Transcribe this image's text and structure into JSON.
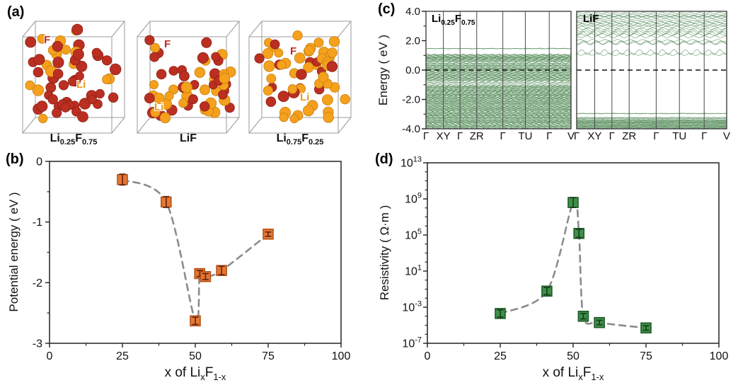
{
  "panel_a": {
    "label": "(a)",
    "f_color": "#bb2f22",
    "f_stroke": "#8d2014",
    "li_color": "#f5a11d",
    "li_stroke": "#c97f0e",
    "structures": [
      {
        "formula": {
          "el1": "Li",
          "sub1": "0.25",
          "el2": "F",
          "sub2": "0.75"
        },
        "f_ratio": 0.75,
        "atoms": 56,
        "f_tag": "F",
        "li_tag": "Li"
      },
      {
        "formula": {
          "el1": "Li",
          "sub1": "",
          "el2": "F",
          "sub2": ""
        },
        "f_ratio": 0.5,
        "atoms": 56,
        "f_tag": "F",
        "li_tag": "Li"
      },
      {
        "formula": {
          "el1": "Li",
          "sub1": "0.75",
          "el2": "F",
          "sub2": "0.25"
        },
        "f_ratio": 0.25,
        "atoms": 56,
        "f_tag": "F",
        "li_tag": "Li"
      }
    ]
  },
  "chart_data": [
    {
      "id": "b",
      "type": "scatter",
      "label": "(b)",
      "ylabel": "Potential energy ( eV )",
      "xlabel": {
        "pre": "x of Li",
        "sub1": "x",
        "mid": "F",
        "sub2": "1-x"
      },
      "xlim": [
        0,
        100
      ],
      "ylim": [
        -3,
        0
      ],
      "xticks": [
        0,
        25,
        50,
        75,
        100
      ],
      "yticks": [
        0,
        -1,
        -2,
        -3
      ],
      "grid": false,
      "points": [
        {
          "x": 25,
          "y": -0.3,
          "yerr": 0.09
        },
        {
          "x": 40,
          "y": -0.67,
          "yerr": 0.09
        },
        {
          "x": 50,
          "y": -2.63,
          "yerr": 0.06
        },
        {
          "x": 51.5,
          "y": -1.85,
          "yerr": 0.05
        },
        {
          "x": 53.5,
          "y": -1.9,
          "yerr": 0.05
        },
        {
          "x": 59,
          "y": -1.8,
          "yerr": 0.07
        },
        {
          "x": 75,
          "y": -1.2,
          "yerr": 0.035
        }
      ],
      "marker": {
        "shape": "square",
        "fill": "#e57733",
        "stroke": "#b4541c",
        "err": "#5f2410"
      },
      "curve": {
        "style": "dashed",
        "color": "#8c8c8c"
      }
    },
    {
      "id": "c",
      "type": "band-structure",
      "label": "(c)",
      "ylabel": "Energy ( eV )",
      "ylim": [
        -4,
        4
      ],
      "ytick_values": [
        4,
        2,
        0,
        -2,
        -4
      ],
      "ytick_labels": [
        "4.0",
        "2.0",
        "0.0",
        "-2.0",
        "-4.0"
      ],
      "yminor": [
        3,
        1,
        -1,
        -3
      ],
      "kpath": [
        "Γ",
        "XY",
        "Γ",
        "ZR",
        "Γ",
        "TU",
        "Γ",
        "V"
      ],
      "kpath_fractions": [
        0,
        0.12,
        0.235,
        0.35,
        0.53,
        0.685,
        0.85,
        1
      ],
      "fermi_energy": 0,
      "band_color": "#3e7d43",
      "panels": [
        {
          "title": {
            "el1": "Li",
            "sub1": "0.25",
            "el2": "F",
            "sub2": "0.75"
          },
          "regions": [
            {
              "from": -4.0,
              "to": -1.02,
              "count": 85,
              "amp": 0.05,
              "waves": 26
            },
            {
              "from": -0.95,
              "to": -0.8,
              "count": 3,
              "amp": 0.03,
              "waves": 20
            },
            {
              "from": -0.75,
              "to": 0.5,
              "count": 34,
              "amp": 0.05,
              "waves": 22
            },
            {
              "from": 0.55,
              "to": 1.08,
              "count": 16,
              "amp": 0.04,
              "waves": 20
            },
            {
              "from": 1.44,
              "to": 1.48,
              "count": 2,
              "amp": 0.01,
              "waves": 12
            }
          ]
        },
        {
          "title": {
            "el1": "LiF",
            "sub1": "",
            "el2": "",
            "sub2": ""
          },
          "regions": [
            {
              "from": -4.0,
              "to": -3.35,
              "count": 22,
              "amp": 0.015,
              "waves": 30
            },
            {
              "from": -3.3,
              "to": -3.22,
              "count": 3,
              "amp": 0.01,
              "waves": 25
            },
            {
              "from": -2.98,
              "to": -2.94,
              "count": 2,
              "amp": 0.008,
              "waves": 12
            },
            {
              "from": 0.95,
              "to": 1.25,
              "count": 2,
              "amp": 0.17,
              "waves": 13
            },
            {
              "from": 1.75,
              "to": 2.05,
              "count": 3,
              "amp": 0.13,
              "waves": 12
            },
            {
              "from": 2.25,
              "to": 2.85,
              "count": 6,
              "amp": 0.1,
              "waves": 14
            },
            {
              "from": 2.9,
              "to": 3.92,
              "count": 12,
              "amp": 0.06,
              "waves": 16
            }
          ]
        }
      ]
    },
    {
      "id": "d",
      "type": "scatter",
      "label": "(d)",
      "ylabel": "Resistivity ( Ω·m )",
      "xlabel": {
        "pre": "x of Li",
        "sub1": "x",
        "mid": "F",
        "sub2": "1-x"
      },
      "xlim": [
        0,
        100
      ],
      "yscale": "log",
      "ytick_exponents": [
        13,
        9,
        5,
        1,
        -3,
        -7
      ],
      "xticks": [
        0,
        25,
        50,
        75,
        100
      ],
      "grid": false,
      "points": [
        {
          "x": 25,
          "y": 0.0002,
          "yerr_dec": 0.4
        },
        {
          "x": 41,
          "y": 0.06,
          "yerr_dec": 0.4
        },
        {
          "x": 50,
          "y": 400000000.0,
          "yerr_dec": 0.55
        },
        {
          "x": 52,
          "y": 150000.0,
          "yerr_dec": 0.45
        },
        {
          "x": 53.5,
          "y": 0.0001,
          "yerr_dec": 0.3
        },
        {
          "x": 59,
          "y": 2e-05,
          "yerr_dec": 0.25
        },
        {
          "x": 75,
          "y": 5e-06,
          "yerr_dec": 0.25
        }
      ],
      "marker": {
        "shape": "square",
        "fill": "#3f8f49",
        "stroke": "#1e5b28",
        "err": "#15391a"
      },
      "curve": {
        "style": "dashed",
        "color": "#8c8c8c"
      }
    }
  ]
}
